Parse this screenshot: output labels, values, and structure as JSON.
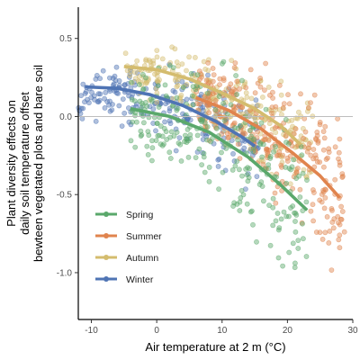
{
  "chart_data": {
    "type": "scatter",
    "xlabel": "Air temperature at 2 m (°C)",
    "ylabel_lines": [
      "Plant diversity effects on",
      "daily soil temperature offset",
      "bewteen vegetated plots and bare soil"
    ],
    "xlim": [
      -12,
      30
    ],
    "ylim": [
      -1.3,
      0.7
    ],
    "xticks": [
      -10,
      0,
      10,
      20,
      30
    ],
    "yticks": [
      -1.0,
      -0.5,
      0.0,
      0.5
    ],
    "xtick_labels": [
      "-10",
      "0",
      "10",
      "20",
      "30"
    ],
    "ytick_labels": [
      "-1.0",
      "-0.5",
      "0.0",
      "0.5"
    ],
    "reference_line_y": 0,
    "grid": false,
    "legend_position": "bottom-left",
    "series": [
      {
        "name": "Spring",
        "color": "#5aa86b",
        "cloud": {
          "x_range": [
            -4,
            23
          ],
          "y_center_at_x": [
            [
              -4,
              0.05
            ],
            [
              5,
              -0.05
            ],
            [
              12,
              -0.22
            ],
            [
              18,
              -0.42
            ],
            [
              23,
              -0.62
            ]
          ],
          "spread": 0.22,
          "count": 260
        },
        "fit": [
          [
            -4,
            0.05
          ],
          [
            2,
            0.0
          ],
          [
            8,
            -0.1
          ],
          [
            14,
            -0.26
          ],
          [
            19,
            -0.44
          ],
          [
            23,
            -0.6
          ]
        ]
      },
      {
        "name": "Summer",
        "color": "#e0844e",
        "cloud": {
          "x_range": [
            6,
            29
          ],
          "y_center_at_x": [
            [
              6,
              0.1
            ],
            [
              12,
              0.02
            ],
            [
              18,
              -0.15
            ],
            [
              23,
              -0.32
            ],
            [
              28,
              -0.52
            ]
          ],
          "spread": 0.2,
          "count": 300
        },
        "fit": [
          [
            6,
            0.12
          ],
          [
            11,
            0.04
          ],
          [
            16,
            -0.08
          ],
          [
            21,
            -0.24
          ],
          [
            25,
            -0.38
          ],
          [
            28,
            -0.52
          ]
        ]
      },
      {
        "name": "Autumn",
        "color": "#d4bc6e",
        "cloud": {
          "x_range": [
            -5,
            24
          ],
          "y_center_at_x": [
            [
              -5,
              0.3
            ],
            [
              2,
              0.25
            ],
            [
              8,
              0.15
            ],
            [
              14,
              0.05
            ],
            [
              20,
              -0.12
            ],
            [
              24,
              -0.22
            ]
          ],
          "spread": 0.12,
          "count": 260
        },
        "fit": [
          [
            -5,
            0.32
          ],
          [
            0,
            0.3
          ],
          [
            5,
            0.24
          ],
          [
            10,
            0.15
          ],
          [
            15,
            0.05
          ],
          [
            19,
            -0.06
          ],
          [
            22,
            -0.18
          ]
        ]
      },
      {
        "name": "Winter",
        "color": "#4f74b4",
        "cloud": {
          "x_range": [
            -12,
            16
          ],
          "y_center_at_x": [
            [
              -12,
              0.12
            ],
            [
              -6,
              0.15
            ],
            [
              0,
              0.1
            ],
            [
              6,
              0.02
            ],
            [
              12,
              -0.1
            ],
            [
              16,
              -0.2
            ]
          ],
          "spread": 0.12,
          "count": 240
        },
        "fit": [
          [
            -11,
            0.19
          ],
          [
            -6,
            0.18
          ],
          [
            -1,
            0.14
          ],
          [
            4,
            0.07
          ],
          [
            9,
            -0.03
          ],
          [
            13,
            -0.13
          ],
          [
            15,
            -0.19
          ]
        ]
      }
    ]
  }
}
